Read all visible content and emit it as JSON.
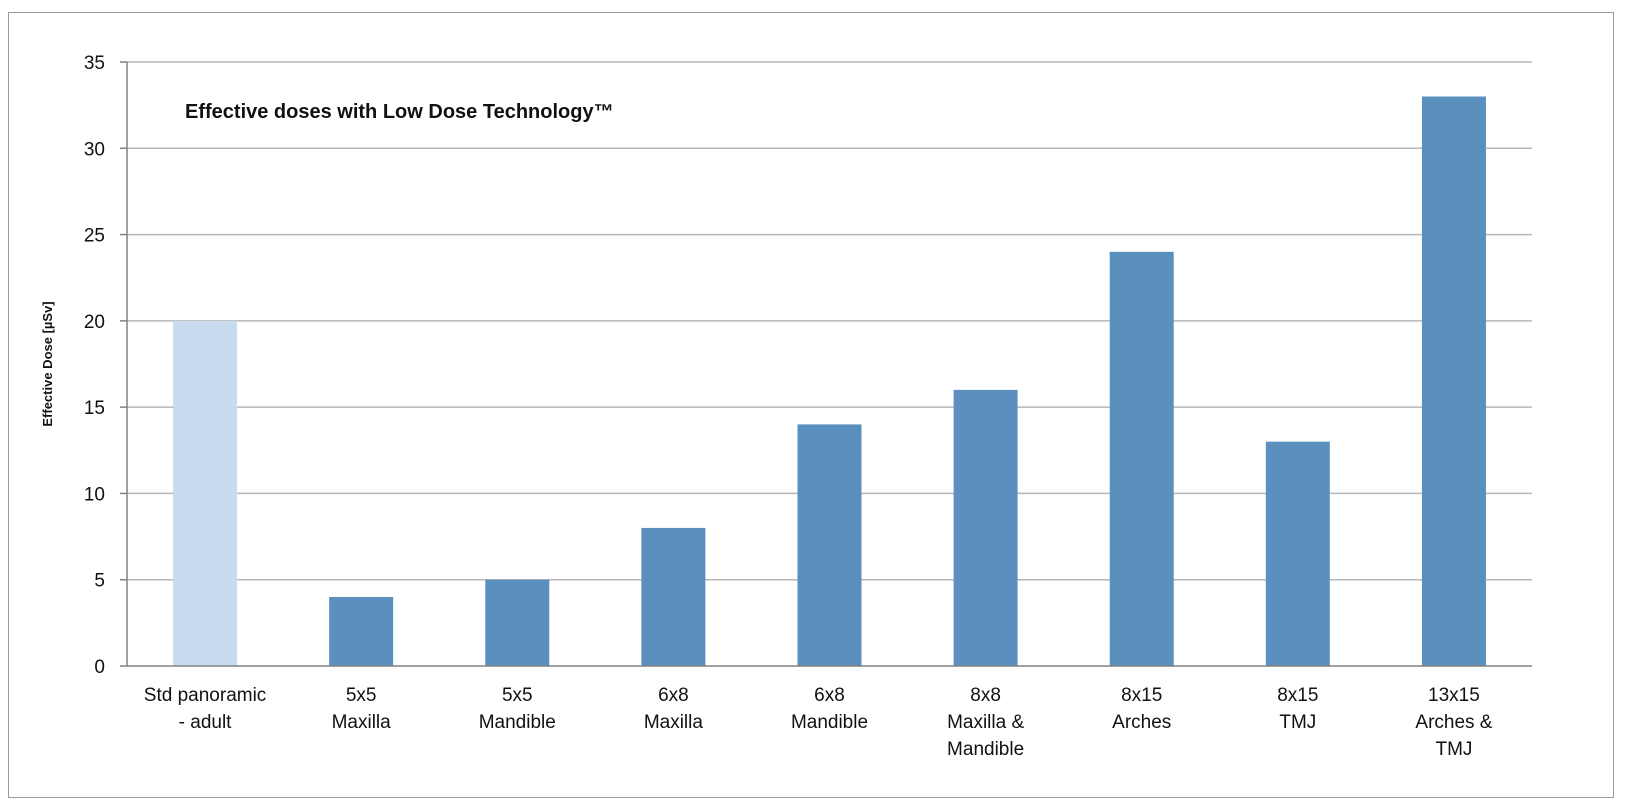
{
  "chart_data": {
    "type": "bar",
    "title": "Effective doses with Low Dose Technology™",
    "ylabel": "Effective Dose [µSv]",
    "xlabel": "",
    "ylim": [
      0,
      35
    ],
    "yticks": [
      0,
      5,
      10,
      15,
      20,
      25,
      30,
      35
    ],
    "grid": true,
    "categories": [
      [
        "Std panoramic",
        "- adult"
      ],
      [
        "5x5",
        "Maxilla"
      ],
      [
        "5x5",
        "Mandible"
      ],
      [
        "6x8",
        "Maxilla"
      ],
      [
        "6x8",
        "Mandible"
      ],
      [
        "8x8",
        "Maxilla &",
        "Mandible"
      ],
      [
        "8x15",
        "Arches"
      ],
      [
        "8x15",
        "TMJ"
      ],
      [
        "13x15",
        "Arches &",
        "TMJ"
      ]
    ],
    "values": [
      20,
      4,
      5,
      8,
      14,
      16,
      24,
      13,
      33
    ],
    "colors": [
      "#c9dcef",
      "#5b8fbe",
      "#5b8fbe",
      "#5b8fbe",
      "#5b8fbe",
      "#5b8fbe",
      "#5b8fbe",
      "#5b8fbe",
      "#5b8fbe"
    ],
    "grid_color": "#b7b7b7",
    "axis_color": "#808080"
  }
}
